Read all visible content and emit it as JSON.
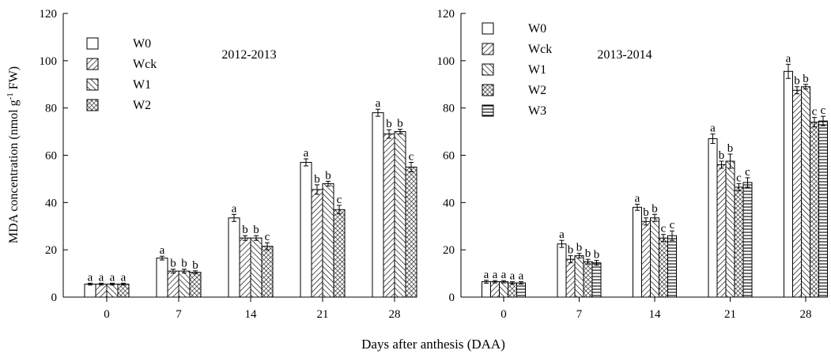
{
  "figure": {
    "xlabel": "Days after anthesis (DAA)",
    "ylabel_main": "MDA concentration (nmol g",
    "ylabel_sup": "-1",
    "ylabel_tail": " FW)"
  },
  "patterns": {
    "W0": "blank",
    "Wck": "fwd-diagonal",
    "W1": "back-diagonal",
    "W2": "crosshatch",
    "W3": "horizontal"
  },
  "chart_data": [
    {
      "type": "bar",
      "title": "2012-2013",
      "categories": [
        "0",
        "7",
        "14",
        "21",
        "28"
      ],
      "ylim": [
        0,
        120
      ],
      "yticks": [
        0,
        20,
        40,
        60,
        80,
        100,
        120
      ],
      "legend_position": "top-left",
      "series": [
        {
          "name": "W0",
          "values": [
            5.5,
            16.5,
            33.5,
            57.0,
            78.0
          ],
          "errors": [
            0.4,
            0.8,
            1.5,
            1.5,
            1.5
          ],
          "letters": [
            "a",
            "a",
            "a",
            "a",
            "a"
          ]
        },
        {
          "name": "Wck",
          "values": [
            5.5,
            11.0,
            25.0,
            45.5,
            69.0
          ],
          "errors": [
            0.4,
            0.8,
            1.0,
            2.0,
            1.8
          ],
          "letters": [
            "a",
            "b",
            "b",
            "b",
            "b"
          ]
        },
        {
          "name": "W1",
          "values": [
            5.5,
            11.0,
            25.0,
            48.0,
            70.0
          ],
          "errors": [
            0.4,
            0.8,
            1.0,
            1.0,
            1.0
          ],
          "letters": [
            "a",
            "b",
            "b",
            "b",
            "b"
          ]
        },
        {
          "name": "W2",
          "values": [
            5.5,
            10.5,
            21.5,
            37.0,
            55.0
          ],
          "errors": [
            0.4,
            0.6,
            1.5,
            1.8,
            2.0
          ],
          "letters": [
            "a",
            "b",
            "c",
            "c",
            "c"
          ]
        }
      ]
    },
    {
      "type": "bar",
      "title": "2013-2014",
      "categories": [
        "0",
        "7",
        "14",
        "21",
        "28"
      ],
      "ylim": [
        0,
        120
      ],
      "yticks": [
        0,
        20,
        40,
        60,
        80,
        100,
        120
      ],
      "legend_position": "top-left",
      "series": [
        {
          "name": "W0",
          "values": [
            6.5,
            22.5,
            38.0,
            67.0,
            95.5
          ],
          "errors": [
            0.6,
            1.5,
            1.3,
            2.0,
            3.0
          ],
          "letters": [
            "a",
            "a",
            "a",
            "a",
            "a"
          ]
        },
        {
          "name": "Wck",
          "values": [
            6.5,
            16.0,
            32.0,
            56.0,
            87.5
          ],
          "errors": [
            0.5,
            1.5,
            1.5,
            1.5,
            1.5
          ],
          "letters": [
            "a",
            "b",
            "b",
            "b",
            "b"
          ]
        },
        {
          "name": "W1",
          "values": [
            6.5,
            17.5,
            33.5,
            57.5,
            89.0
          ],
          "errors": [
            0.5,
            1.0,
            1.5,
            3.0,
            1.0
          ],
          "letters": [
            "a",
            "b",
            "b",
            "b",
            "b"
          ]
        },
        {
          "name": "W2",
          "values": [
            6.0,
            15.0,
            25.0,
            46.5,
            74.0
          ],
          "errors": [
            0.5,
            1.0,
            1.5,
            1.5,
            2.0
          ],
          "letters": [
            "a",
            "b",
            "c",
            "c",
            "c"
          ]
        },
        {
          "name": "W3",
          "values": [
            6.0,
            14.5,
            26.0,
            48.5,
            74.5
          ],
          "errors": [
            0.5,
            1.0,
            2.0,
            2.0,
            2.0
          ],
          "letters": [
            "a",
            "b",
            "c",
            "c",
            "c"
          ]
        }
      ]
    }
  ]
}
